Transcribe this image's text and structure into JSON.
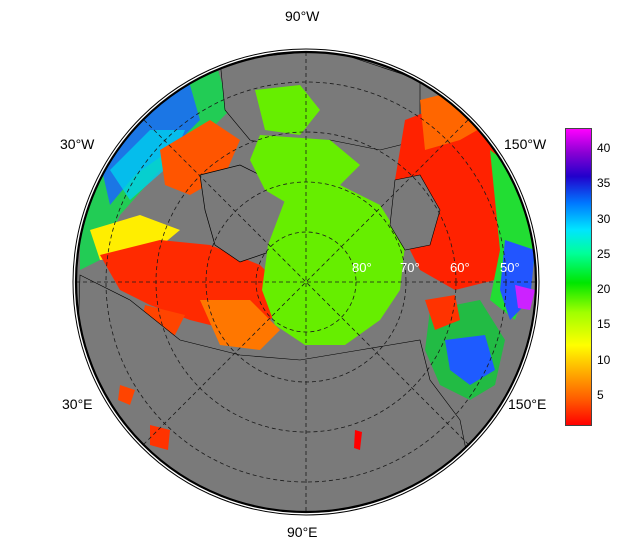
{
  "map": {
    "projection": "polar",
    "longitude_labels": {
      "top": "90°W",
      "upper_left": "30°W",
      "upper_right": "150°W",
      "lower_left": "30°E",
      "lower_right": "150°E",
      "bottom": "90°E"
    },
    "latitude_labels": [
      "80°",
      "70°",
      "60°",
      "50°"
    ],
    "colors": {
      "land": "#7a7a7a",
      "ice": "#66ee00",
      "graticule": "#1a1a1a",
      "border": "#000000"
    }
  },
  "colorbar": {
    "ticks": [
      "5",
      "10",
      "15",
      "20",
      "25",
      "30",
      "35",
      "40"
    ],
    "min": 1,
    "max": 43,
    "palette": [
      "#ff0000",
      "#ff5500",
      "#ffa500",
      "#ffff00",
      "#a0ff00",
      "#00e600",
      "#00ff99",
      "#00e5ff",
      "#0077ff",
      "#2200cc",
      "#8a00d4",
      "#ff00ff"
    ]
  }
}
